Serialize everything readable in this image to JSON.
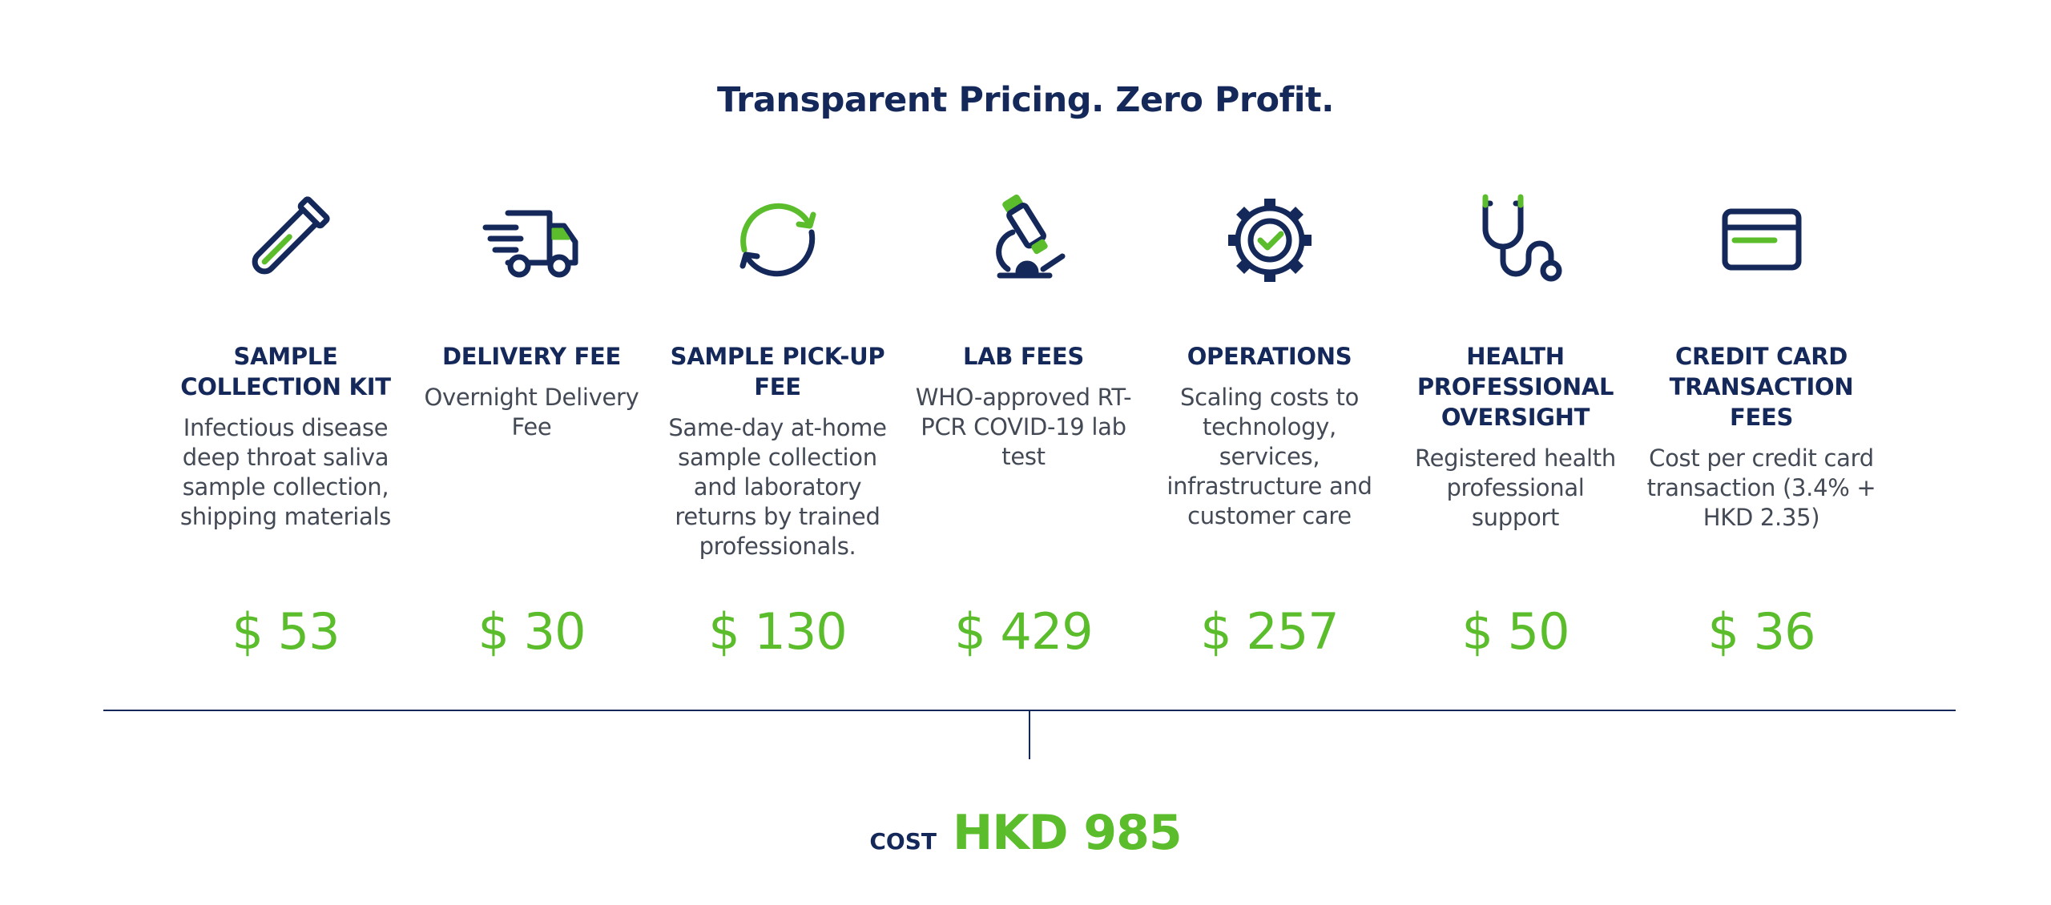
{
  "title": "Transparent Pricing. Zero Profit.",
  "colors": {
    "navy": "#14285a",
    "green": "#5bbd2b",
    "text": "#444a55"
  },
  "items": [
    {
      "icon": "test-tube-icon",
      "name": "SAMPLE COLLECTION KIT",
      "description": "Infectious disease deep throat saliva sample collection, shipping materials",
      "price": "$ 53"
    },
    {
      "icon": "delivery-truck-icon",
      "name": "DELIVERY FEE",
      "description": "Overnight Delivery Fee",
      "price": "$ 30"
    },
    {
      "icon": "refresh-arrows-icon",
      "name": "SAMPLE PICK-UP FEE",
      "description": "Same-day at-home sample collection and laboratory returns by trained professionals.",
      "price": "$ 130"
    },
    {
      "icon": "microscope-icon",
      "name": "LAB FEES",
      "description": "WHO-approved RT-PCR COVID-19 lab test",
      "price": "$ 429"
    },
    {
      "icon": "gear-check-icon",
      "name": "OPERATIONS",
      "description": "Scaling costs to technology, services, infrastructure and customer care",
      "price": "$ 257"
    },
    {
      "icon": "stethoscope-icon",
      "name": "HEALTH PROFESSIONAL OVERSIGHT",
      "description": "Registered health professional support",
      "price": "$ 50"
    },
    {
      "icon": "credit-card-icon",
      "name": "CREDIT CARD TRANSACTION FEES",
      "description": "Cost per credit card transaction (3.4% + HKD 2.35)",
      "price": "$ 36"
    }
  ],
  "total": {
    "label": "COST",
    "value": "HKD 985"
  }
}
